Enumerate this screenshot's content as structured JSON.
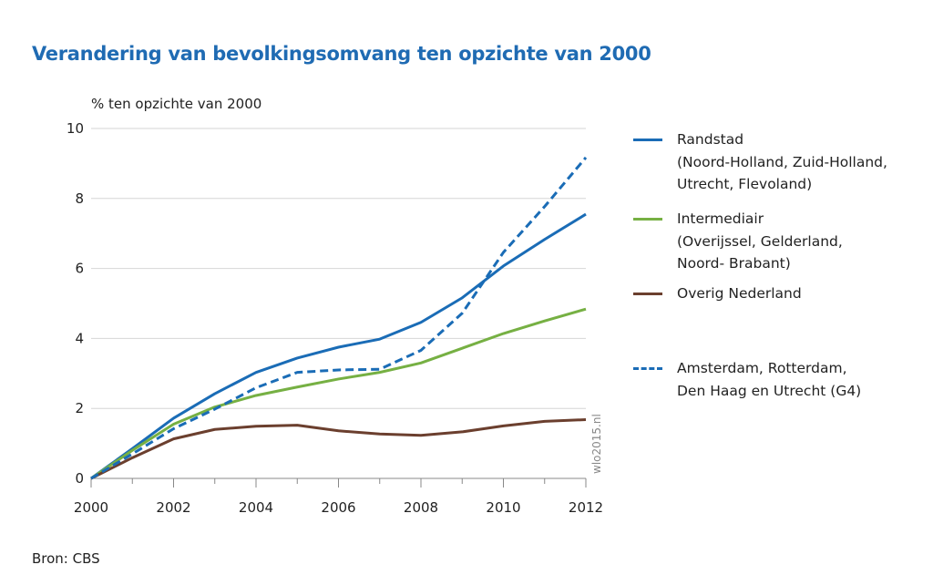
{
  "chart_data": {
    "type": "line",
    "title": "Verandering van bevolkingsomvang ten opzichte van 2000",
    "ylabel": "% ten opzichte van 2000",
    "xlabel": "",
    "x": [
      2000,
      2001,
      2002,
      2003,
      2004,
      2005,
      2006,
      2007,
      2008,
      2009,
      2010,
      2011,
      2012
    ],
    "xticks": [
      "2000",
      "2002",
      "2004",
      "2006",
      "2008",
      "2010",
      "2012"
    ],
    "yticks": [
      "0",
      "2",
      "4",
      "6",
      "8",
      "10"
    ],
    "xlim": [
      2000,
      2012
    ],
    "ylim": [
      0,
      10
    ],
    "grid": "horizontal",
    "legend_position": "right",
    "series": [
      {
        "name": "Randstad (Noord-Holland, Zuid-Holland, Utrecht, Flevoland)",
        "legend_lines": [
          "Randstad",
          "(Noord-Holland, Zuid-Holland,",
          "Utrecht, Flevoland)"
        ],
        "color": "#1a6cb6",
        "dash": false,
        "values": [
          0,
          0.85,
          1.72,
          2.42,
          3.03,
          3.44,
          3.75,
          3.98,
          4.46,
          5.16,
          6.07,
          6.83,
          7.55
        ]
      },
      {
        "name": "Intermediair (Overijssel, Gelderland, Noord- Brabant)",
        "legend_lines": [
          "Intermediair",
          "(Overijssel, Gelderland,",
          "Noord- Brabant)"
        ],
        "color": "#76b043",
        "dash": false,
        "values": [
          0,
          0.8,
          1.55,
          2.04,
          2.37,
          2.61,
          2.84,
          3.03,
          3.3,
          3.72,
          4.14,
          4.5,
          4.84
        ]
      },
      {
        "name": "Overig Nederland",
        "legend_lines": [
          "Overig Nederland"
        ],
        "color": "#6b3f2e",
        "dash": false,
        "values": [
          0,
          0.59,
          1.13,
          1.4,
          1.49,
          1.52,
          1.36,
          1.27,
          1.23,
          1.33,
          1.5,
          1.63,
          1.68
        ]
      },
      {
        "name": "Amsterdam, Rotterdam, Den Haag en Utrecht (G4)",
        "legend_lines": [
          "Amsterdam, Rotterdam,",
          "Den Haag en Utrecht (G4)"
        ],
        "color": "#1a6cb6",
        "dash": true,
        "values": [
          0,
          0.7,
          1.42,
          1.98,
          2.59,
          3.03,
          3.1,
          3.12,
          3.66,
          4.72,
          6.46,
          7.77,
          9.17
        ]
      }
    ]
  },
  "source": "Bron: CBS",
  "watermark": "wlo2015.nl"
}
